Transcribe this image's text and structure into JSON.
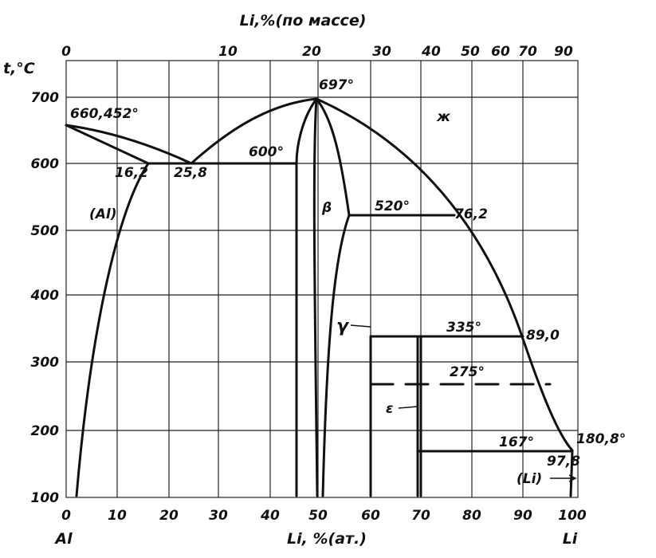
{
  "diagram": {
    "top_axis_title": "Li,%(по массе)",
    "bottom_axis_title": "Li, %(ат.)",
    "y_axis_title": "t,°C",
    "left_component": "Al",
    "right_component": "Li",
    "y_ticks": [
      100,
      200,
      300,
      400,
      500,
      600,
      700
    ],
    "x_ticks": [
      0,
      10,
      20,
      30,
      40,
      50,
      60,
      70,
      80,
      90,
      100
    ],
    "top_ticks": [
      0,
      10,
      20,
      30,
      40,
      50,
      60,
      70,
      90
    ],
    "annotations": {
      "al_melting": "660,452°",
      "max_temp": "697°",
      "liquid": "ж",
      "eutectic_temp": "600°",
      "al_solvus": "16,2",
      "eutectic_comp": "25,8",
      "al_phase": "(Al)",
      "beta_phase": "β",
      "peritectic_520": "520°",
      "comp_762": "76,2",
      "gamma_phase": "γ",
      "peritectic_335": "335°",
      "comp_890": "89,0",
      "temp_275": "275°",
      "epsilon_phase": "ε",
      "temp_167": "167°",
      "li_melting": "180,8°",
      "comp_978": "97,8",
      "li_phase": "(Li)"
    }
  }
}
